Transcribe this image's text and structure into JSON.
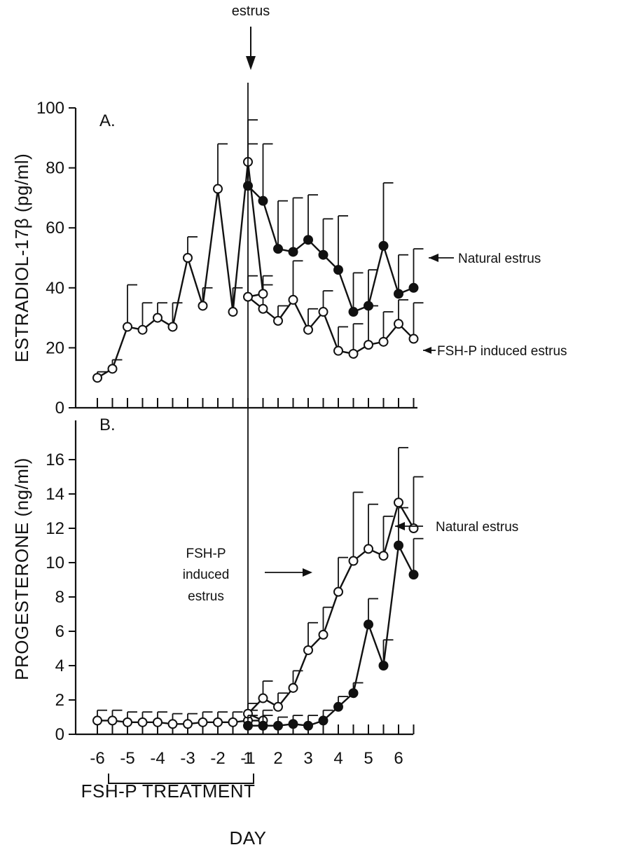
{
  "figure": {
    "estrus_marker_label": "estrus",
    "x_axis_title": "DAY",
    "treatment_label": "FSH-P TREATMENT",
    "x_tick_labels": [
      "-6",
      "-5",
      "-4",
      "-3",
      "-2",
      "-1",
      "1",
      "2",
      "3",
      "4",
      "5",
      "6"
    ]
  },
  "chart_data": [
    {
      "type": "line",
      "panel_label": "A.",
      "ylabel": "ESTRADIOL-17β (pg/ml)",
      "xlabel": "DAY",
      "ylim": [
        0,
        100
      ],
      "yticks": [
        0,
        20,
        40,
        60,
        80,
        100
      ],
      "grid": false,
      "series": [
        {
          "name": "FSH-P induced estrus",
          "marker": "open",
          "x": [
            -6,
            -5.5,
            -5,
            -4.5,
            -4,
            -3.5,
            -3,
            -2.5,
            -2,
            -1.5,
            -1,
            -0.5,
            1,
            1.5,
            2,
            2.5,
            3,
            3.5,
            4,
            4.5,
            5,
            5.5,
            6,
            6.5
          ],
          "values": [
            10,
            13,
            27,
            26,
            30,
            27,
            50,
            34,
            73,
            32,
            82,
            38,
            37,
            33,
            29,
            36,
            26,
            32,
            19,
            18,
            21,
            22,
            28,
            23
          ],
          "error": [
            2,
            3,
            14,
            9,
            5,
            8,
            7,
            6,
            15,
            8,
            14,
            6,
            7,
            8,
            5,
            13,
            7,
            7,
            8,
            10,
            13,
            10,
            8,
            12
          ]
        },
        {
          "name": "Natural estrus",
          "marker": "filled",
          "x": [
            1,
            1.5,
            2,
            2.5,
            3,
            3.5,
            4,
            4.5,
            5,
            5.5,
            6,
            6.5
          ],
          "values": [
            74,
            69,
            53,
            52,
            56,
            51,
            46,
            32,
            34,
            54,
            38,
            40
          ],
          "error": [
            14,
            19,
            16,
            18,
            15,
            12,
            18,
            13,
            12,
            21,
            13,
            13
          ]
        }
      ],
      "annotations": [
        "Natural estrus",
        "FSH-P induced estrus"
      ]
    },
    {
      "type": "line",
      "panel_label": "B.",
      "ylabel": "PROGESTERONE (ng/ml)",
      "xlabel": "DAY",
      "ylim": [
        0,
        18
      ],
      "yticks": [
        0,
        2,
        4,
        6,
        8,
        10,
        12,
        14,
        16
      ],
      "grid": false,
      "series": [
        {
          "name": "FSH-P induced estrus",
          "marker": "open",
          "x": [
            -6,
            -5.5,
            -5,
            -4.5,
            -4,
            -3.5,
            -3,
            -2.5,
            -2,
            -1.5,
            -1,
            -0.5,
            1,
            1.5,
            2,
            2.5,
            3,
            3.5,
            4,
            4.5,
            5,
            5.5,
            6,
            6.5
          ],
          "values": [
            0.8,
            0.8,
            0.7,
            0.7,
            0.7,
            0.6,
            0.6,
            0.7,
            0.7,
            0.7,
            0.8,
            0.8,
            1.2,
            2.1,
            1.6,
            2.7,
            4.9,
            5.8,
            8.3,
            10.1,
            10.8,
            10.4,
            13.5,
            12.0
          ],
          "error": [
            0.6,
            0.6,
            0.6,
            0.6,
            0.6,
            0.6,
            0.6,
            0.6,
            0.6,
            0.6,
            0.6,
            0.6,
            0.6,
            1.0,
            0.8,
            1.0,
            1.6,
            1.6,
            2.0,
            4.0,
            2.6,
            2.3,
            3.2,
            3.0
          ]
        },
        {
          "name": "Natural estrus",
          "marker": "filled",
          "x": [
            1,
            1.5,
            2,
            2.5,
            3,
            3.5,
            4,
            4.5,
            5,
            5.5,
            6,
            6.5
          ],
          "values": [
            0.5,
            0.5,
            0.5,
            0.6,
            0.5,
            0.8,
            1.6,
            2.4,
            6.4,
            4.0,
            11.0,
            9.3
          ],
          "error": [
            0.6,
            0.6,
            0.5,
            0.5,
            0.6,
            0.6,
            0.6,
            0.6,
            1.5,
            1.5,
            2.2,
            2.1
          ]
        }
      ],
      "annotations": [
        "FSH-P induced estrus",
        "Natural estrus"
      ]
    }
  ]
}
